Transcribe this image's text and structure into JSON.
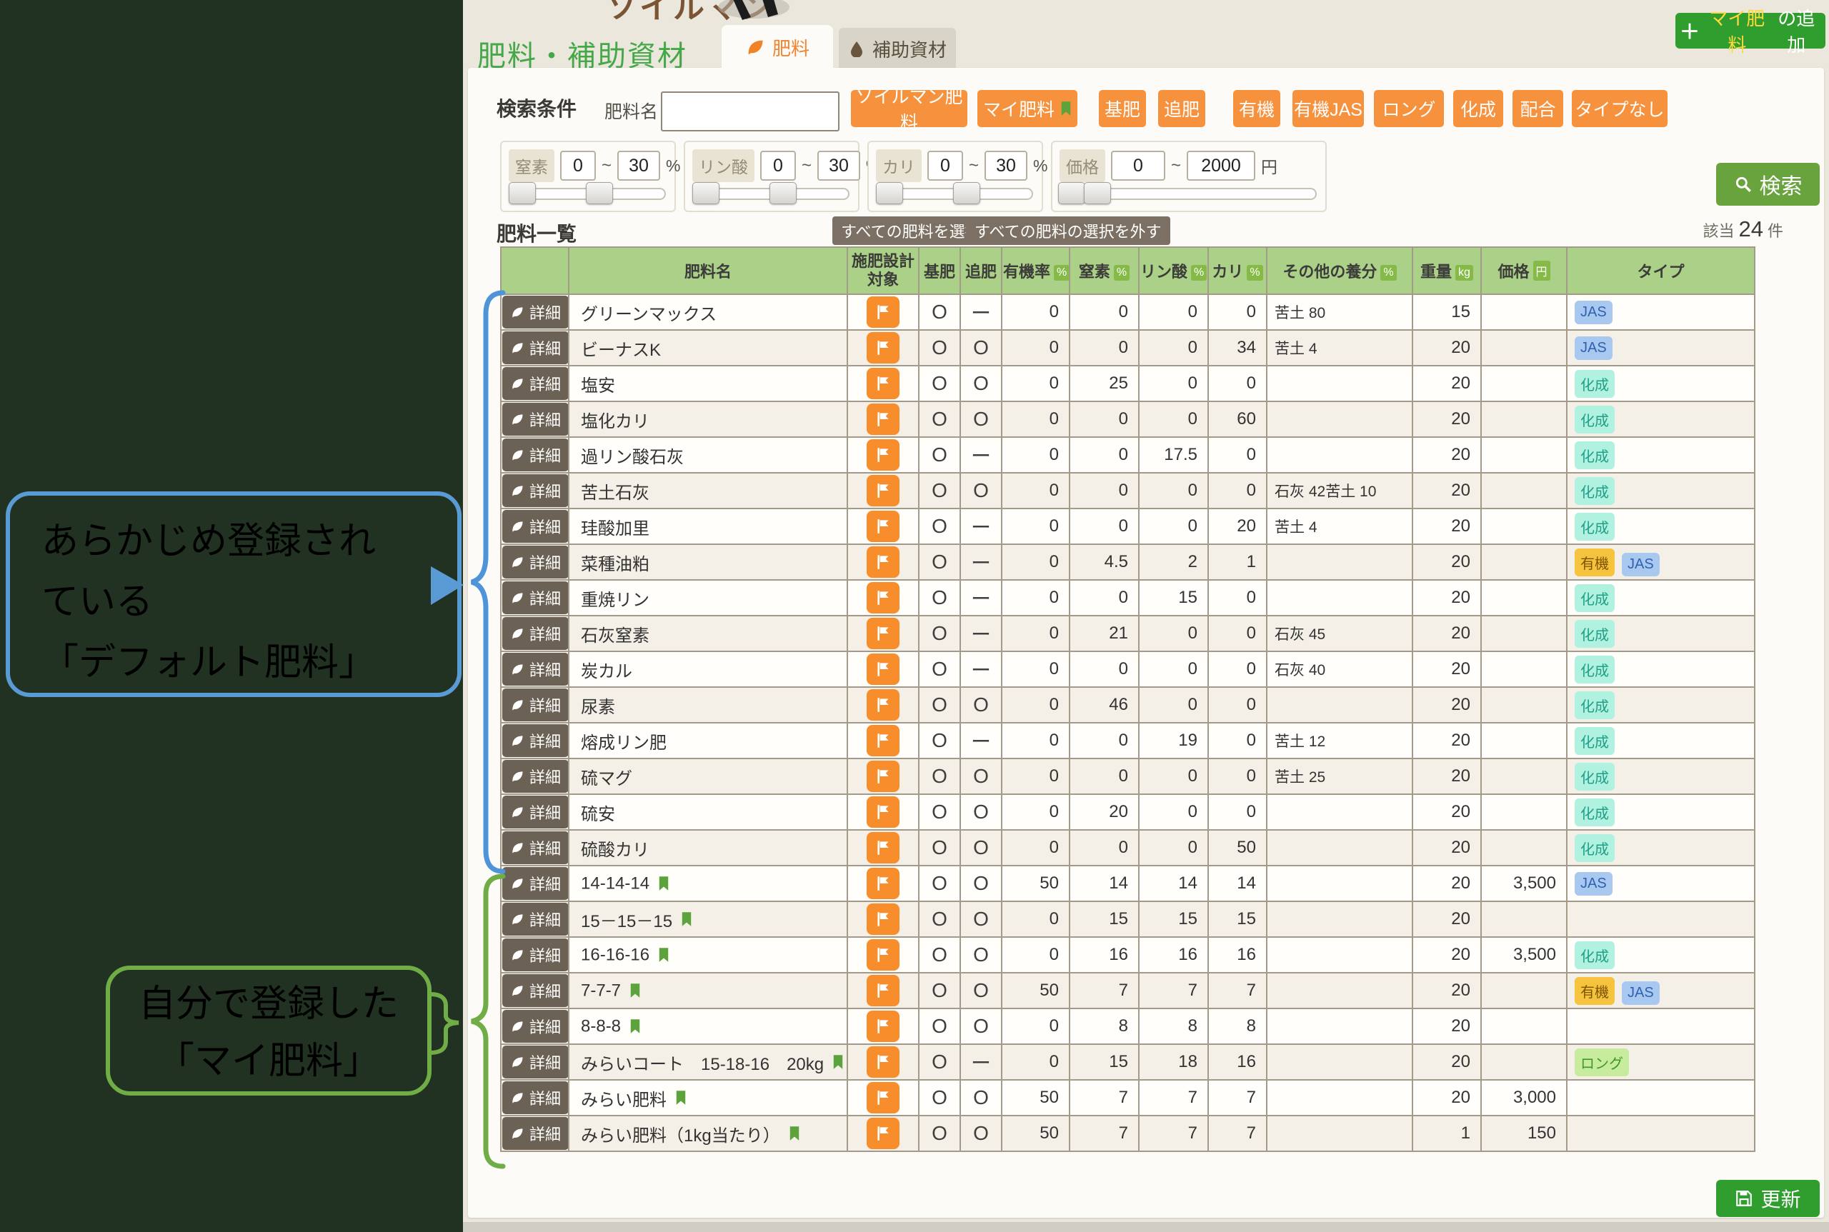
{
  "header": {
    "logo": "ソイルマン",
    "page_title": "肥料・補助資材",
    "tabs": [
      {
        "label": "肥料",
        "active": true
      },
      {
        "label": "補助資材",
        "active": false
      }
    ],
    "add_button": {
      "plus": "＋",
      "highlight": "マイ肥料",
      "rest": "の追加"
    }
  },
  "search": {
    "section_label": "検索条件",
    "name_label": "肥料名",
    "name_value": "",
    "tilde": "~",
    "filter_buttons": [
      "ソイルマン肥料",
      "マイ肥料",
      "基肥",
      "追肥",
      "有機",
      "有機JAS",
      "ロング",
      "化成",
      "配合",
      "タイプなし"
    ],
    "range_filters": [
      {
        "label": "窒素",
        "min": "0",
        "max": "30",
        "unit": "%"
      },
      {
        "label": "リン酸",
        "min": "0",
        "max": "30",
        "unit": "%"
      },
      {
        "label": "カリ",
        "min": "0",
        "max": "30",
        "unit": "%"
      },
      {
        "label": "価格",
        "min": "0",
        "max": "2000",
        "unit": "円"
      }
    ],
    "search_button": "検索"
  },
  "list": {
    "title": "肥料一覧",
    "select_all": "すべての肥料を選択",
    "deselect_all": "すべての肥料の選択を外す",
    "hit_prefix": "該当",
    "hit_count": "24",
    "hit_suffix": "件"
  },
  "table": {
    "detail_label": "詳細",
    "headers": {
      "name": "肥料名",
      "target_line1": "施肥設計",
      "target_line2": "対象",
      "base": "基肥",
      "top": "追肥",
      "organic": "有機率",
      "n": "窒素",
      "p": "リン酸",
      "k": "カリ",
      "other": "その他の養分",
      "weight": "重量",
      "price": "価格",
      "type": "タイプ"
    },
    "units": {
      "percent": "%",
      "kg": "kg",
      "yen": "円"
    },
    "rows": [
      {
        "name": "グリーンマックス",
        "my": false,
        "base": "O",
        "top": "ー",
        "organic": "0",
        "n": "0",
        "p": "0",
        "k": "0",
        "other": "苦土 80",
        "weight": "15",
        "price": "",
        "types": [
          "JAS"
        ]
      },
      {
        "name": "ビーナスK",
        "my": false,
        "base": "O",
        "top": "O",
        "organic": "0",
        "n": "0",
        "p": "0",
        "k": "34",
        "other": "苦土 4",
        "weight": "20",
        "price": "",
        "types": [
          "JAS"
        ]
      },
      {
        "name": "塩安",
        "my": false,
        "base": "O",
        "top": "O",
        "organic": "0",
        "n": "25",
        "p": "0",
        "k": "0",
        "other": "",
        "weight": "20",
        "price": "",
        "types": [
          "化成"
        ]
      },
      {
        "name": "塩化カリ",
        "my": false,
        "base": "O",
        "top": "O",
        "organic": "0",
        "n": "0",
        "p": "0",
        "k": "60",
        "other": "",
        "weight": "20",
        "price": "",
        "types": [
          "化成"
        ]
      },
      {
        "name": "過リン酸石灰",
        "my": false,
        "base": "O",
        "top": "ー",
        "organic": "0",
        "n": "0",
        "p": "17.5",
        "k": "0",
        "other": "",
        "weight": "20",
        "price": "",
        "types": [
          "化成"
        ]
      },
      {
        "name": "苦土石灰",
        "my": false,
        "base": "O",
        "top": "O",
        "organic": "0",
        "n": "0",
        "p": "0",
        "k": "0",
        "other": "石灰 42苦土 10",
        "weight": "20",
        "price": "",
        "types": [
          "化成"
        ]
      },
      {
        "name": "珪酸加里",
        "my": false,
        "base": "O",
        "top": "ー",
        "organic": "0",
        "n": "0",
        "p": "0",
        "k": "20",
        "other": "苦土 4",
        "weight": "20",
        "price": "",
        "types": [
          "化成"
        ]
      },
      {
        "name": "菜種油粕",
        "my": false,
        "base": "O",
        "top": "ー",
        "organic": "0",
        "n": "4.5",
        "p": "2",
        "k": "1",
        "other": "",
        "weight": "20",
        "price": "",
        "types": [
          "有機",
          "JAS"
        ]
      },
      {
        "name": "重焼リン",
        "my": false,
        "base": "O",
        "top": "ー",
        "organic": "0",
        "n": "0",
        "p": "15",
        "k": "0",
        "other": "",
        "weight": "20",
        "price": "",
        "types": [
          "化成"
        ]
      },
      {
        "name": "石灰窒素",
        "my": false,
        "base": "O",
        "top": "ー",
        "organic": "0",
        "n": "21",
        "p": "0",
        "k": "0",
        "other": "石灰 45",
        "weight": "20",
        "price": "",
        "types": [
          "化成"
        ]
      },
      {
        "name": "炭カル",
        "my": false,
        "base": "O",
        "top": "ー",
        "organic": "0",
        "n": "0",
        "p": "0",
        "k": "0",
        "other": "石灰 40",
        "weight": "20",
        "price": "",
        "types": [
          "化成"
        ]
      },
      {
        "name": "尿素",
        "my": false,
        "base": "O",
        "top": "O",
        "organic": "0",
        "n": "46",
        "p": "0",
        "k": "0",
        "other": "",
        "weight": "20",
        "price": "",
        "types": [
          "化成"
        ]
      },
      {
        "name": "熔成リン肥",
        "my": false,
        "base": "O",
        "top": "ー",
        "organic": "0",
        "n": "0",
        "p": "19",
        "k": "0",
        "other": "苦土 12",
        "weight": "20",
        "price": "",
        "types": [
          "化成"
        ]
      },
      {
        "name": "硫マグ",
        "my": false,
        "base": "O",
        "top": "O",
        "organic": "0",
        "n": "0",
        "p": "0",
        "k": "0",
        "other": "苦土 25",
        "weight": "20",
        "price": "",
        "types": [
          "化成"
        ]
      },
      {
        "name": "硫安",
        "my": false,
        "base": "O",
        "top": "O",
        "organic": "0",
        "n": "20",
        "p": "0",
        "k": "0",
        "other": "",
        "weight": "20",
        "price": "",
        "types": [
          "化成"
        ]
      },
      {
        "name": "硫酸カリ",
        "my": false,
        "base": "O",
        "top": "O",
        "organic": "0",
        "n": "0",
        "p": "0",
        "k": "50",
        "other": "",
        "weight": "20",
        "price": "",
        "types": [
          "化成"
        ]
      },
      {
        "name": "14-14-14",
        "my": true,
        "base": "O",
        "top": "O",
        "organic": "50",
        "n": "14",
        "p": "14",
        "k": "14",
        "other": "",
        "weight": "20",
        "price": "3,500",
        "types": [
          "JAS"
        ]
      },
      {
        "name": "15－15－15",
        "my": true,
        "base": "O",
        "top": "O",
        "organic": "0",
        "n": "15",
        "p": "15",
        "k": "15",
        "other": "",
        "weight": "20",
        "price": "",
        "types": []
      },
      {
        "name": "16-16-16",
        "my": true,
        "base": "O",
        "top": "O",
        "organic": "0",
        "n": "16",
        "p": "16",
        "k": "16",
        "other": "",
        "weight": "20",
        "price": "3,500",
        "types": [
          "化成"
        ]
      },
      {
        "name": "7-7-7",
        "my": true,
        "base": "O",
        "top": "O",
        "organic": "50",
        "n": "7",
        "p": "7",
        "k": "7",
        "other": "",
        "weight": "20",
        "price": "",
        "types": [
          "有機",
          "JAS"
        ]
      },
      {
        "name": "8-8-8",
        "my": true,
        "base": "O",
        "top": "O",
        "organic": "0",
        "n": "8",
        "p": "8",
        "k": "8",
        "other": "",
        "weight": "20",
        "price": "",
        "types": []
      },
      {
        "name": "みらいコート　15-18-16　20kg",
        "my": true,
        "base": "O",
        "top": "ー",
        "organic": "0",
        "n": "15",
        "p": "18",
        "k": "16",
        "other": "",
        "weight": "20",
        "price": "",
        "types": [
          "ロング"
        ]
      },
      {
        "name": "みらい肥料",
        "my": true,
        "base": "O",
        "top": "O",
        "organic": "50",
        "n": "7",
        "p": "7",
        "k": "7",
        "other": "",
        "weight": "20",
        "price": "3,000",
        "types": []
      },
      {
        "name": "みらい肥料（1kg当たり）",
        "my": true,
        "base": "O",
        "top": "O",
        "organic": "50",
        "n": "7",
        "p": "7",
        "k": "7",
        "other": "",
        "weight": "1",
        "price": "150",
        "types": []
      }
    ]
  },
  "footer": {
    "update_button": "更新"
  },
  "annotations": {
    "default_note": {
      "line1": "あらかじめ登録され",
      "line2": "ている",
      "line3": "「デフォルト肥料」"
    },
    "my_note": {
      "line1": "自分で登録した",
      "line2": "「マイ肥料」"
    }
  },
  "colors": {
    "accent_orange": "#f6913d",
    "header_green": "#abd189",
    "button_green": "#2f9e2f",
    "search_green": "#68a33e",
    "annotation_blue": "#5b9bd5",
    "annotation_green": "#70ad47",
    "badges": {
      "JAS": {
        "bg": "#a9c8f0",
        "fg": "#2e62b0"
      },
      "化成": {
        "bg": "#b0f1df",
        "fg": "#1f9f88"
      },
      "有機": {
        "bg": "#f6c33e",
        "fg": "#7d5400"
      },
      "ロング": {
        "bg": "#c8ec9e",
        "fg": "#3f9922"
      }
    }
  }
}
